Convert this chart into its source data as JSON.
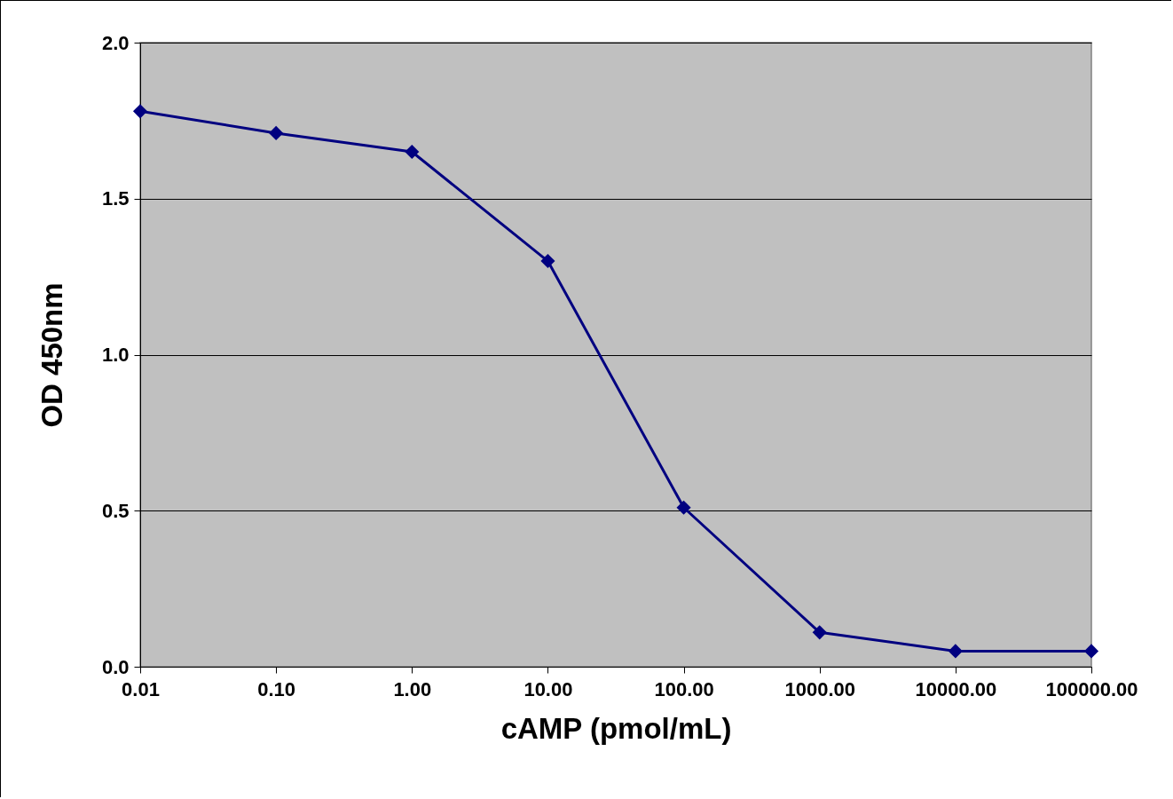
{
  "chart_data": {
    "type": "line",
    "xlabel": "cAMP (pmol/mL)",
    "ylabel": "OD 450nm",
    "x": [
      0.01,
      0.1,
      1,
      10,
      100,
      1000,
      10000,
      100000
    ],
    "series": [
      {
        "color": "#000080",
        "values": [
          1.78,
          1.71,
          1.65,
          1.3,
          0.51,
          0.11,
          0.05,
          0.05
        ]
      }
    ],
    "log": "x",
    "xlim": [
      0.01,
      100000
    ],
    "xticks": [
      {
        "value": 0.01,
        "label": "0.01"
      },
      {
        "value": 0.1,
        "label": "0.10"
      },
      {
        "value": 1,
        "label": "1.00"
      },
      {
        "value": 10,
        "label": "10.00"
      },
      {
        "value": 100,
        "label": "100.00"
      },
      {
        "value": 1000,
        "label": "1000.00"
      },
      {
        "value": 10000,
        "label": "10000.00"
      },
      {
        "value": 100000,
        "label": "100000.00"
      }
    ],
    "ylim": [
      0,
      2
    ],
    "yticks": [
      {
        "value": 0,
        "label": "0.0"
      },
      {
        "value": 0.5,
        "label": "0.5"
      },
      {
        "value": 1,
        "label": "1.0"
      },
      {
        "value": 1.5,
        "label": "1.5"
      },
      {
        "value": 2,
        "label": "2.0"
      }
    ],
    "grid": "y",
    "marker": "diamond",
    "line_style": "solid",
    "legend": false
  }
}
